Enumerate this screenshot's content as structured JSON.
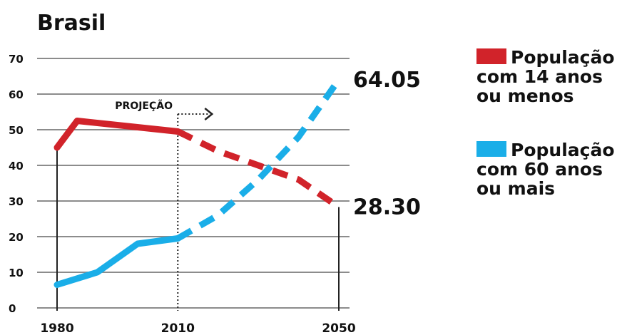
{
  "chart_data": {
    "type": "line",
    "title": "Brasil",
    "xlabel": "",
    "ylabel": "",
    "xlim": [
      1980,
      2050
    ],
    "ylim": [
      0,
      70
    ],
    "x_ticks": [
      "1980",
      "2010",
      "2050"
    ],
    "y_ticks": [
      "0",
      "10",
      "20",
      "30",
      "40",
      "50",
      "60",
      "70"
    ],
    "grid": true,
    "legend_position": "right",
    "projection_label": "PROJEÇÃO",
    "projection_start": 2010,
    "series": [
      {
        "name": "População com 14 anos ou menos",
        "legend_lines": [
          "População",
          "com 14 anos",
          "ou menos"
        ],
        "color": "#d1232a",
        "x": [
          1980,
          1985,
          2010,
          2020,
          2030,
          2040,
          2050
        ],
        "values": [
          45,
          52.5,
          49.5,
          44,
          40,
          36,
          28.3
        ],
        "end_label": "28.30"
      },
      {
        "name": "População com 60 anos ou mais",
        "legend_lines": [
          "População",
          "com 60 anos",
          "ou mais"
        ],
        "color": "#1aaee8",
        "x": [
          1980,
          1990,
          2000,
          2010,
          2020,
          2030,
          2040,
          2050
        ],
        "values": [
          6.5,
          10,
          18,
          19.5,
          26,
          36,
          48,
          64.05
        ],
        "end_label": "64.05"
      }
    ]
  }
}
